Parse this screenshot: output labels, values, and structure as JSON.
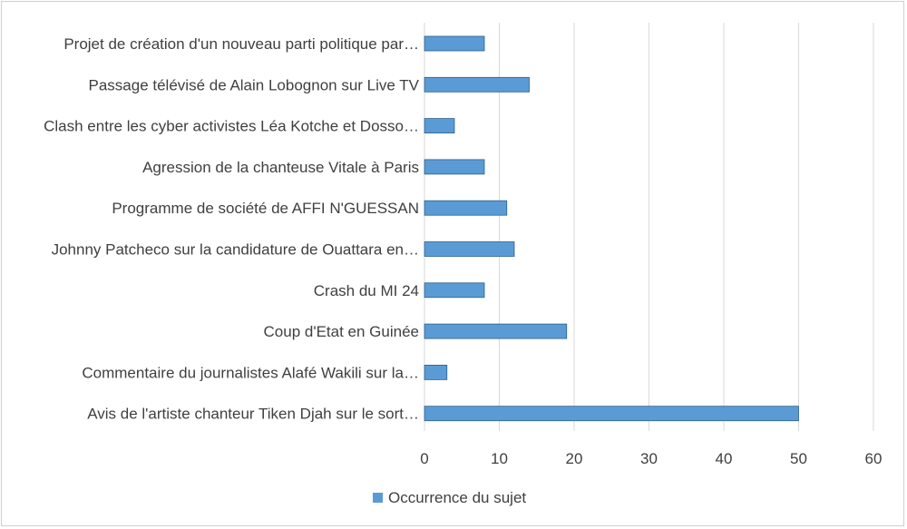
{
  "chart_data": {
    "type": "bar",
    "orientation": "horizontal",
    "categories": [
      "Projet de création d'un nouveau parti politique par…",
      "Passage télévisé de Alain Lobognon sur Live TV",
      "Clash entre les cyber activistes Léa Kotche et Dosso…",
      "Agression de la chanteuse Vitale à Paris",
      "Programme  de société de AFFI N'GUESSAN",
      "Johnny Patcheco sur la candidature de Ouattara en…",
      "Crash du MI 24",
      "Coup d'Etat en Guinée",
      "Commentaire du journalistes Alafé Wakili sur la…",
      "Avis de l'artiste chanteur Tiken Djah sur le sort…"
    ],
    "series": [
      {
        "name": "Occurrence du sujet",
        "values": [
          8,
          14,
          4,
          8,
          11,
          12,
          8,
          19,
          3,
          50
        ],
        "color": "#5b9bd5"
      }
    ],
    "xlim": [
      0,
      60
    ],
    "xticks": [
      0,
      10,
      20,
      30,
      40,
      50,
      60
    ],
    "grid": "vertical",
    "legend": "bottom",
    "title": "",
    "xlabel": "",
    "ylabel": ""
  }
}
